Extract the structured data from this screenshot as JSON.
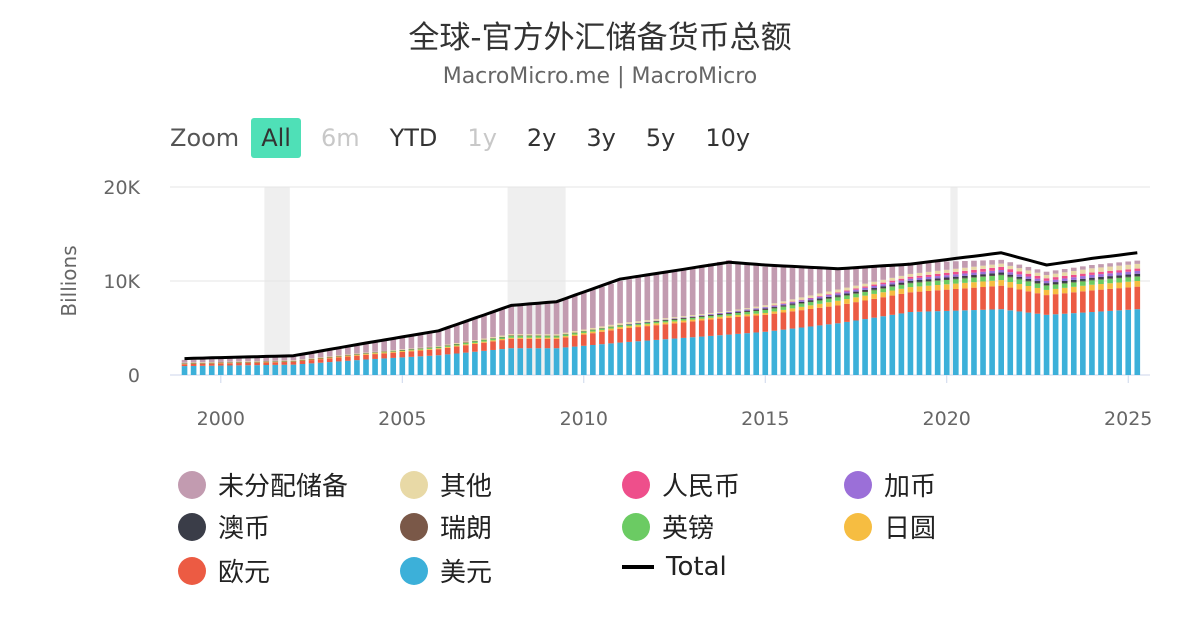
{
  "header": {
    "title": "全球-官方外汇储备货币总额",
    "subtitle": "MacroMicro.me | MacroMicro"
  },
  "zoom": {
    "label": "Zoom",
    "buttons": [
      {
        "label": "All",
        "state": "active"
      },
      {
        "label": "6m",
        "state": "disabled"
      },
      {
        "label": "YTD",
        "state": "normal"
      },
      {
        "label": "1y",
        "state": "disabled"
      },
      {
        "label": "2y",
        "state": "normal"
      },
      {
        "label": "3y",
        "state": "normal"
      },
      {
        "label": "5y",
        "state": "normal"
      },
      {
        "label": "10y",
        "state": "normal"
      }
    ]
  },
  "chart_data": {
    "type": "bar",
    "stacked": true,
    "title": "全球-官方外汇储备货币总额",
    "ylabel": "Billions",
    "ylim": [
      0,
      20000
    ],
    "y_ticks": [
      {
        "value": 0,
        "label": "0"
      },
      {
        "value": 10000,
        "label": "10K"
      },
      {
        "value": 20000,
        "label": "20K"
      }
    ],
    "x_ticks": [
      "2000",
      "2005",
      "2010",
      "2015",
      "2020",
      "2025"
    ],
    "x_range": [
      1998.6,
      2025.6
    ],
    "recession_bands": [
      [
        2001.2,
        2001.9
      ],
      [
        2007.9,
        2009.5
      ],
      [
        2020.1,
        2020.3
      ]
    ],
    "period_start": 1999.0,
    "period_step": 0.25,
    "anchors": {
      "years": [
        1999,
        2002,
        2004,
        2006,
        2008,
        2009.25,
        2011,
        2014,
        2015,
        2017,
        2019,
        2021.5,
        2022.75,
        2024,
        2025.25
      ],
      "usd": [
        950,
        1100,
        1650,
        2100,
        2850,
        2850,
        3450,
        4300,
        4600,
        5500,
        6700,
        7000,
        6400,
        6700,
        7000
      ],
      "eur": [
        200,
        300,
        500,
        650,
        1000,
        1000,
        1450,
        1800,
        1800,
        1900,
        2100,
        2500,
        2100,
        2300,
        2400
      ],
      "jpy": [
        60,
        60,
        100,
        100,
        120,
        130,
        200,
        200,
        200,
        500,
        550,
        600,
        550,
        600,
        600
      ],
      "gbp": [
        30,
        30,
        70,
        150,
        230,
        200,
        200,
        230,
        350,
        400,
        450,
        550,
        500,
        500,
        500
      ],
      "chf": [
        5,
        5,
        5,
        5,
        5,
        5,
        5,
        5,
        20,
        20,
        20,
        20,
        20,
        20,
        20
      ],
      "aud": [
        0,
        0,
        0,
        0,
        0,
        0,
        0,
        80,
        100,
        170,
        200,
        230,
        200,
        230,
        250
      ],
      "cad": [
        0,
        0,
        0,
        0,
        0,
        0,
        0,
        100,
        150,
        200,
        230,
        270,
        250,
        300,
        300
      ],
      "cny": [
        0,
        0,
        0,
        0,
        0,
        0,
        0,
        0,
        0,
        100,
        200,
        330,
        270,
        250,
        250
      ],
      "other": [
        60,
        60,
        60,
        80,
        150,
        150,
        200,
        100,
        200,
        300,
        300,
        350,
        350,
        450,
        500
      ],
      "unalloc": [
        300,
        400,
        900,
        1600,
        3100,
        3500,
        4500,
        5400,
        4100,
        2100,
        1200,
        400,
        350,
        350,
        350
      ],
      "total": [
        1750,
        2050,
        3400,
        4700,
        7400,
        7800,
        10200,
        12000,
        11700,
        11300,
        11800,
        13000,
        11700,
        12400,
        13000
      ]
    },
    "series": [
      {
        "key": "usd",
        "name": "美元",
        "color": "#3cb0d9"
      },
      {
        "key": "eur",
        "name": "欧元",
        "color": "#ec5b43"
      },
      {
        "key": "jpy",
        "name": "日圆",
        "color": "#f6bd41"
      },
      {
        "key": "gbp",
        "name": "英镑",
        "color": "#6bcb63"
      },
      {
        "key": "chf",
        "name": "瑞朗",
        "color": "#7a5848"
      },
      {
        "key": "aud",
        "name": "澳币",
        "color": "#3a3d48"
      },
      {
        "key": "cad",
        "name": "加币",
        "color": "#9b6fd8"
      },
      {
        "key": "cny",
        "name": "人民币",
        "color": "#ee4f8b"
      },
      {
        "key": "other",
        "name": "其他",
        "color": "#e8d9a6"
      },
      {
        "key": "unalloc",
        "name": "未分配储备",
        "color": "#c29bb0"
      }
    ],
    "total_series": {
      "name": "Total",
      "color": "#000000"
    }
  },
  "legend": [
    {
      "name": "未分配储备",
      "color": "#c29bb0",
      "kind": "dot"
    },
    {
      "name": "其他",
      "color": "#e8d9a6",
      "kind": "dot"
    },
    {
      "name": "人民币",
      "color": "#ee4f8b",
      "kind": "dot"
    },
    {
      "name": "加币",
      "color": "#9b6fd8",
      "kind": "dot"
    },
    {
      "name": "澳币",
      "color": "#3a3d48",
      "kind": "dot"
    },
    {
      "name": "瑞朗",
      "color": "#7a5848",
      "kind": "dot"
    },
    {
      "name": "英镑",
      "color": "#6bcb63",
      "kind": "dot"
    },
    {
      "name": "日圆",
      "color": "#f6bd41",
      "kind": "dot"
    },
    {
      "name": "欧元",
      "color": "#ec5b43",
      "kind": "dot"
    },
    {
      "name": "美元",
      "color": "#3cb0d9",
      "kind": "dot"
    },
    {
      "name": "Total",
      "color": "#000000",
      "kind": "line"
    }
  ]
}
